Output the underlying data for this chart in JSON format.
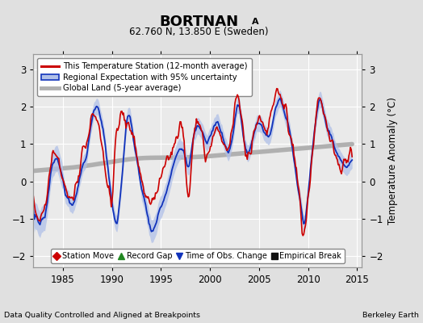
{
  "title_main": "BORTNAN",
  "title_sub_letter": "A",
  "title_coords": "62.760 N, 13.850 E (Sweden)",
  "ylabel": "Temperature Anomaly (°C)",
  "xlabel_left": "Data Quality Controlled and Aligned at Breakpoints",
  "xlabel_right": "Berkeley Earth",
  "ylim": [
    -2.3,
    3.4
  ],
  "xlim": [
    1982.0,
    2015.5
  ],
  "xticks": [
    1985,
    1990,
    1995,
    2000,
    2005,
    2010,
    2015
  ],
  "yticks": [
    -2,
    -1,
    0,
    1,
    2,
    3
  ],
  "bg_color": "#e0e0e0",
  "plot_bg_color": "#eaeaea",
  "grid_color": "#ffffff",
  "red_color": "#cc0000",
  "blue_color": "#1133bb",
  "blue_fill_color": "#b0c0e8",
  "gray_color": "#b0b0b0",
  "legend_entries": [
    "This Temperature Station (12-month average)",
    "Regional Expectation with 95% uncertainty",
    "Global Land (5-year average)"
  ],
  "marker_legend": [
    {
      "label": "Station Move",
      "color": "#cc0000",
      "marker": "D"
    },
    {
      "label": "Record Gap",
      "color": "#228822",
      "marker": "^"
    },
    {
      "label": "Time of Obs. Change",
      "color": "#1133bb",
      "marker": "v"
    },
    {
      "label": "Empirical Break",
      "color": "#111111",
      "marker": "s"
    }
  ],
  "seed": 17
}
